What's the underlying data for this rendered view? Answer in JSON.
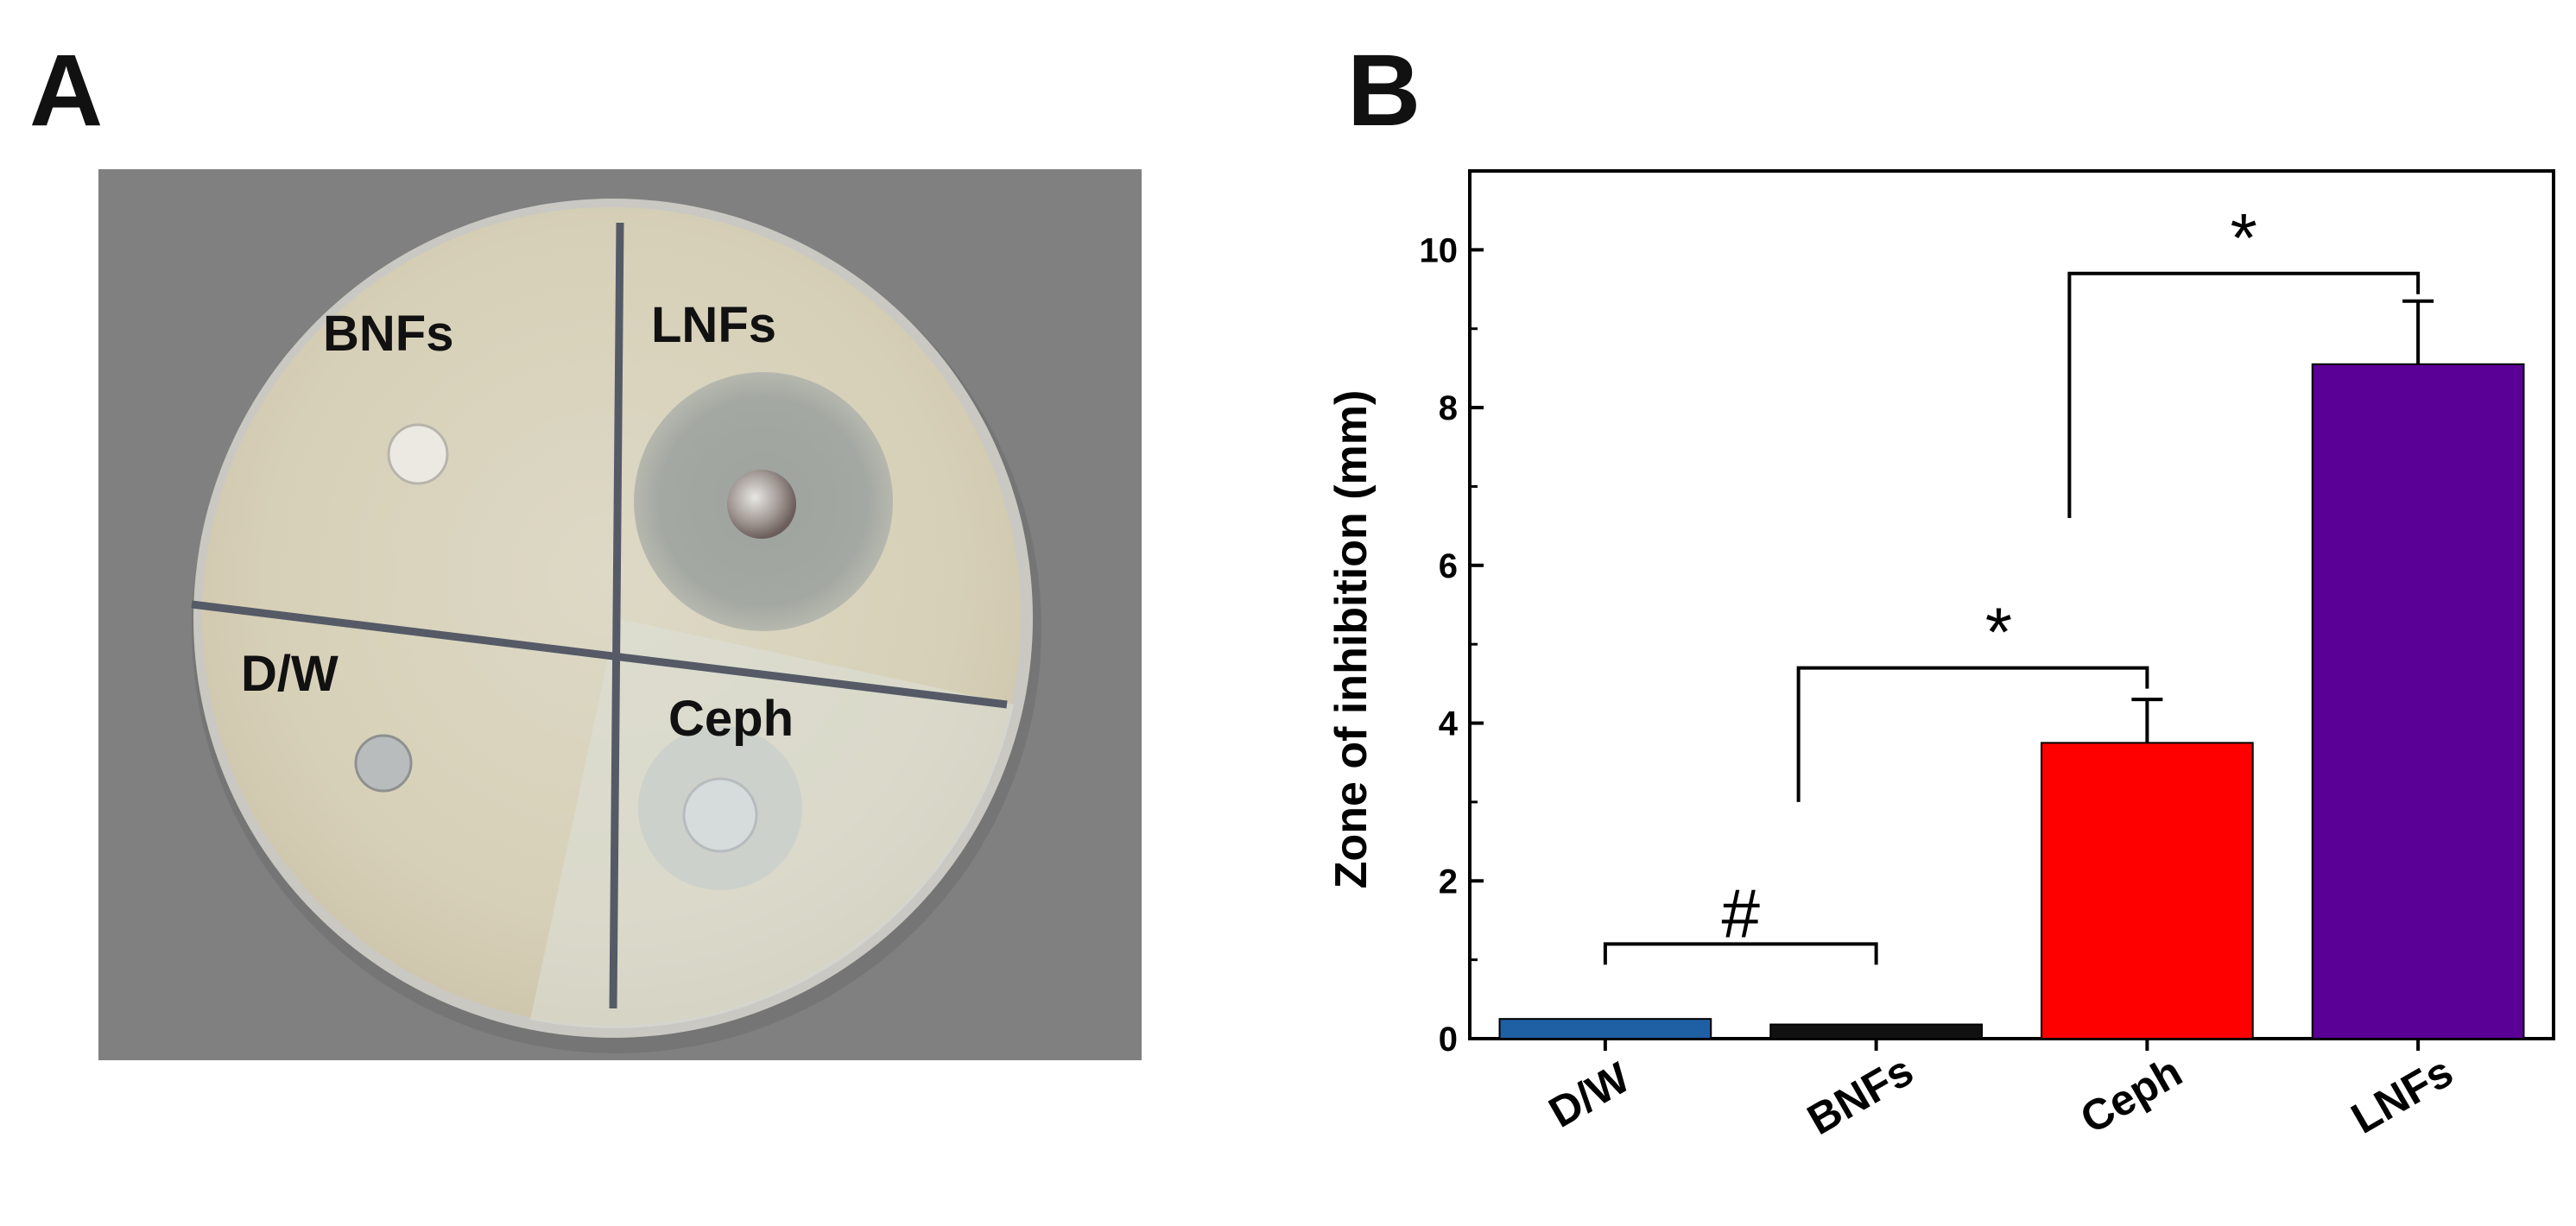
{
  "panel_a": {
    "letter": "A",
    "quadrant_labels": {
      "top_left": "BNFs",
      "top_right": "LNFs",
      "bottom_left": "D/W",
      "bottom_right": "Ceph"
    },
    "colors": {
      "background": "#808080",
      "agar": "#d9d4be",
      "divider": "#555a66"
    }
  },
  "panel_b": {
    "letter": "B",
    "chart_data": {
      "type": "bar",
      "categories": [
        "D/W",
        "BNFs",
        "Ceph",
        "LNFs"
      ],
      "values": [
        0.25,
        0.18,
        3.75,
        8.55
      ],
      "errors": [
        0,
        0,
        0.55,
        0.8
      ],
      "colors": [
        "#1f5fa3",
        "#111111",
        "#ff0000",
        "#5a0096"
      ],
      "ylabel": "Zone of inhibition  (mm)",
      "ylim": [
        0,
        11
      ],
      "yticks": [
        0,
        2,
        4,
        6,
        8,
        10
      ],
      "grid": false,
      "annotations": [
        {
          "symbol": "#",
          "between": [
            "D/W",
            "BNFs"
          ]
        },
        {
          "symbol": "*",
          "between": [
            "BNFs",
            "Ceph"
          ]
        },
        {
          "symbol": "*",
          "between": [
            "Ceph",
            "LNFs"
          ]
        }
      ]
    }
  }
}
